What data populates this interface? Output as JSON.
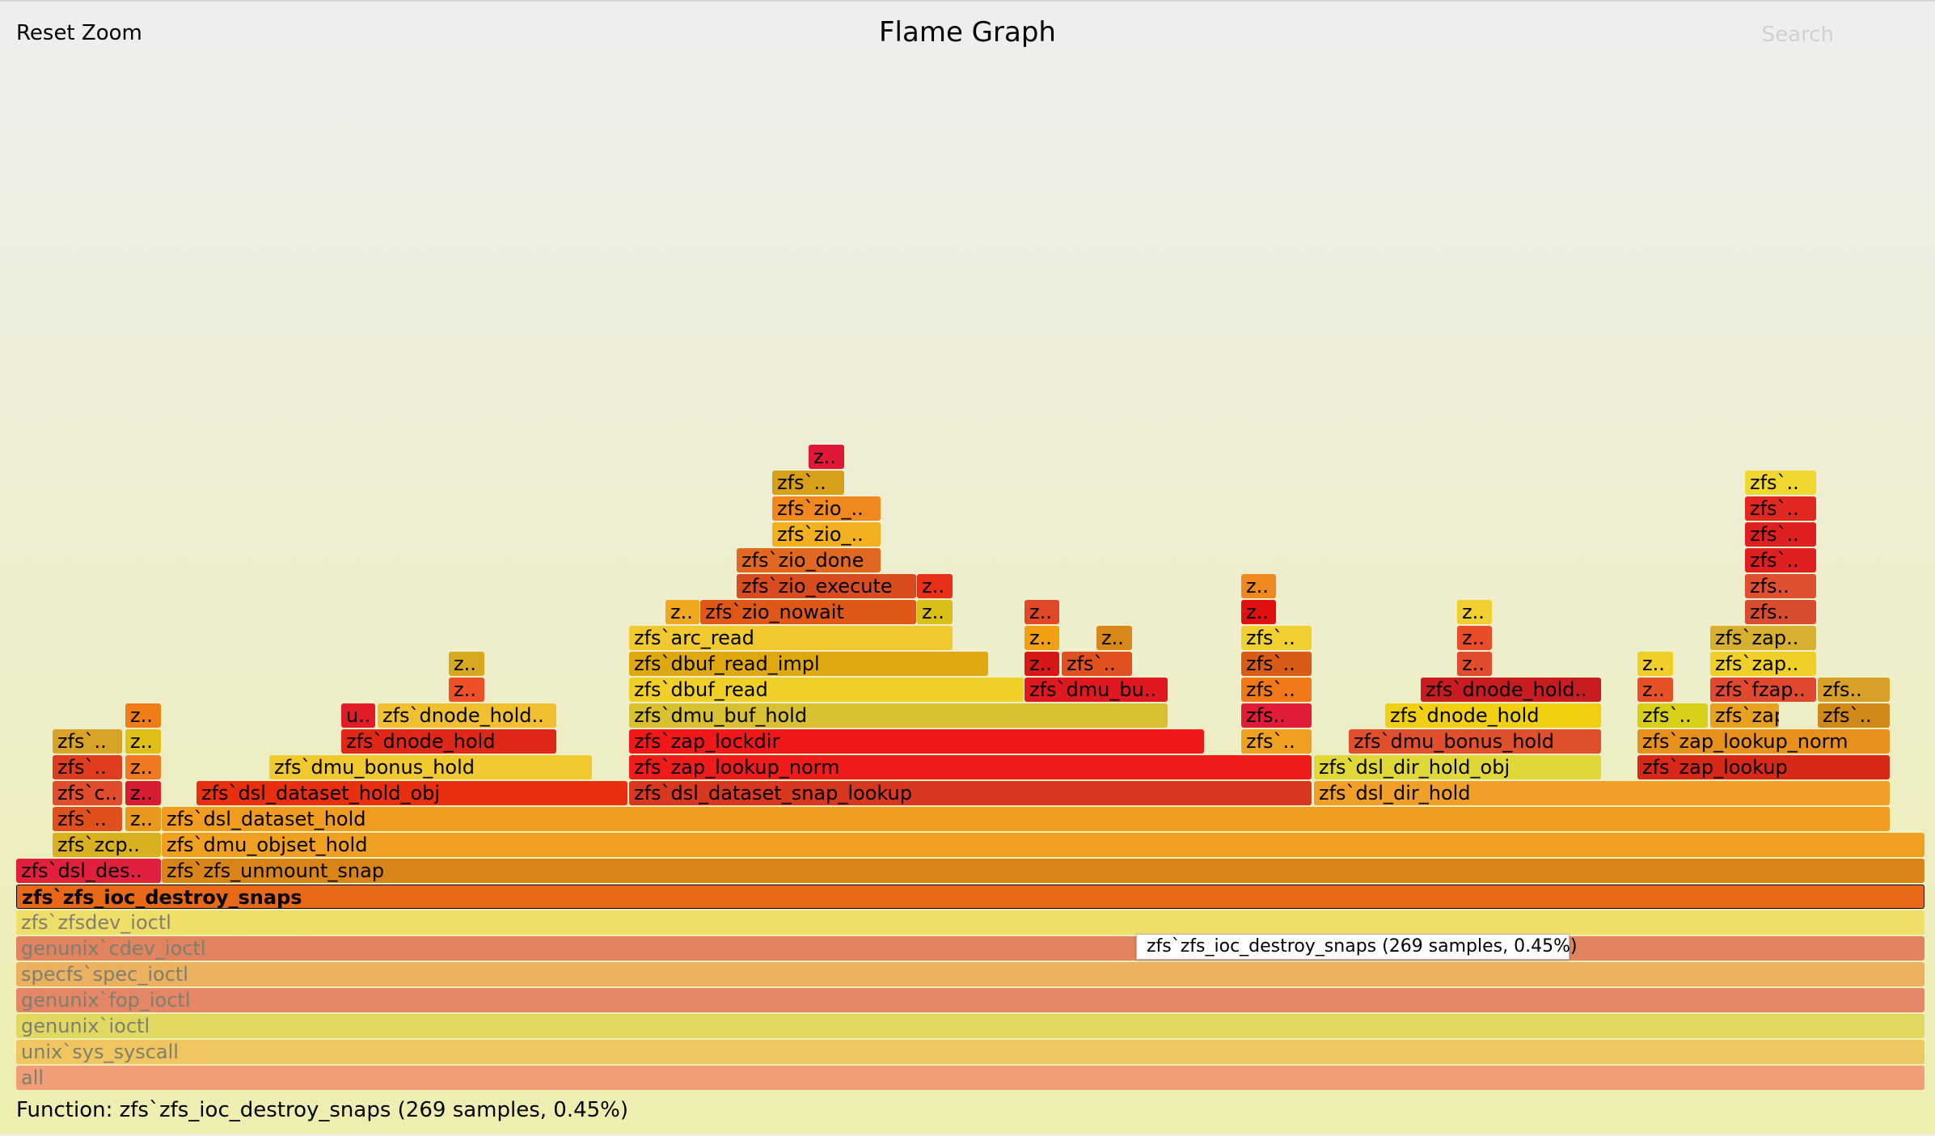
{
  "header": {
    "reset_zoom_label": "Reset Zoom",
    "title": "Flame Graph",
    "search_label": "Search"
  },
  "tooltip": "zfs`zfs_ioc_destroy_snaps (269 samples, 0.45%)",
  "details": "Function: zfs`zfs_ioc_destroy_snaps (269 samples, 0.45%)",
  "colors": {
    "background_top": "#eeeeee",
    "background_bottom": "#eeeeb0"
  },
  "frames": [
    {
      "label": "all",
      "level": 0,
      "color": "#f08060",
      "faded": true
    },
    {
      "label": "unix`sys_syscall",
      "level": 1,
      "color": "#f0b840",
      "faded": true
    },
    {
      "label": "genunix`ioctl",
      "level": 2,
      "color": "#dcd040",
      "faded": true
    },
    {
      "label": "genunix`fop_ioctl",
      "level": 3,
      "color": "#e06048",
      "faded": true
    },
    {
      "label": "specfs`spec_ioctl",
      "level": 4,
      "color": "#ec9a3c",
      "faded": true
    },
    {
      "label": "genunix`cdev_ioctl",
      "level": 5,
      "color": "#dc5a3c",
      "faded": true
    },
    {
      "label": "zfs`zfsdev_ioctl",
      "level": 6,
      "color": "#f0d848",
      "faded": true
    },
    {
      "label": "zfs`zfs_ioc_destroy_snaps",
      "level": 7,
      "color": "#e86818",
      "selected": true
    },
    {
      "label": "zfs`dsl_des..",
      "level": 8,
      "color": "#e0203c"
    },
    {
      "label": "zfs`zfs_unmount_snap",
      "level": 8,
      "color": "#d88418"
    },
    {
      "label": "zfs`zcp..",
      "level": 9,
      "color": "#d8b020"
    },
    {
      "label": "zfs`dmu_objset_hold",
      "level": 9,
      "color": "#f0a020"
    },
    {
      "label": "zfs`..",
      "level": 10,
      "color": "#e0501c"
    },
    {
      "label": "z..",
      "level": 10,
      "color": "#e8981c"
    },
    {
      "label": "zfs`dsl_dataset_hold",
      "level": 10,
      "color": "#f09c20"
    },
    {
      "label": "zfs`c..",
      "level": 11,
      "color": "#e04c2c"
    },
    {
      "label": "z..",
      "level": 11,
      "color": "#d81c30"
    },
    {
      "label": "zfs`dsl_dataset_hold_obj",
      "level": 11,
      "color": "#e83010"
    },
    {
      "label": "zfs`dsl_dataset_snap_lookup",
      "level": 11,
      "color": "#d83820"
    },
    {
      "label": "zfs`dsl_dir_hold",
      "level": 11,
      "color": "#f0a028"
    },
    {
      "label": "zfs`..",
      "level": 12,
      "color": "#e03c20"
    },
    {
      "label": "z..",
      "level": 12,
      "color": "#f07820"
    },
    {
      "label": "zfs`dmu_bonus_hold",
      "level": 12,
      "color": "#f0c830"
    },
    {
      "label": "zfs`zap_lookup_norm",
      "level": 12,
      "color": "#f01c1c"
    },
    {
      "label": "zfs`dsl_dir_hold_obj",
      "level": 12,
      "color": "#e0d838"
    },
    {
      "label": "zfs`zap_lookup",
      "level": 12,
      "color": "#d82818"
    },
    {
      "label": "zfs`..",
      "level": 13,
      "color": "#d8a428"
    },
    {
      "label": "z..",
      "level": 13,
      "color": "#e0c018"
    },
    {
      "label": "zfs`dnode_hold",
      "level": 13,
      "color": "#e02818"
    },
    {
      "label": "zfs`zap_lockdir",
      "level": 13,
      "color": "#f01818"
    },
    {
      "label": "zfs`..",
      "level": 13,
      "color": "#f0a020"
    },
    {
      "label": "zfs`dmu_bonus_hold",
      "level": 13,
      "color": "#e0502c"
    },
    {
      "label": "zfs`zap_lookup_norm",
      "level": 13,
      "color": "#e8901c"
    },
    {
      "label": "z..",
      "level": 14,
      "color": "#f07c18"
    },
    {
      "label": "u..",
      "level": 14,
      "color": "#e01c28"
    },
    {
      "label": "zfs`dnode_hold..",
      "level": 14,
      "color": "#f0c030"
    },
    {
      "label": "zfs`dmu_buf_hold",
      "level": 14,
      "color": "#d8c030"
    },
    {
      "label": "zfs..",
      "level": 14,
      "color": "#e01c38"
    },
    {
      "label": "zfs`dnode_hold",
      "level": 14,
      "color": "#f0d010"
    },
    {
      "label": "zfs`..",
      "level": 14,
      "color": "#d8d018"
    },
    {
      "label": "zfs`zap_..",
      "level": 14,
      "color": "#e8a020"
    },
    {
      "label": "zfs`..",
      "level": 14,
      "color": "#d08818"
    },
    {
      "label": "z..",
      "level": 15,
      "color": "#f05028"
    },
    {
      "label": "zfs`dbuf_read",
      "level": 15,
      "color": "#f0d028"
    },
    {
      "label": "zfs`dmu_bu..",
      "level": 15,
      "color": "#e01820"
    },
    {
      "label": "zfs`..",
      "level": 15,
      "color": "#f07818"
    },
    {
      "label": "zfs`dnode_hold..",
      "level": 15,
      "color": "#c81c20"
    },
    {
      "label": "z..",
      "level": 15,
      "color": "#e85028"
    },
    {
      "label": "zfs`fzap..",
      "level": 15,
      "color": "#e04830"
    },
    {
      "label": "zfs..",
      "level": 15,
      "color": "#d8a028"
    },
    {
      "label": "z..",
      "level": 16,
      "color": "#d8a820"
    },
    {
      "label": "zfs`dbuf_read_impl",
      "level": 16,
      "color": "#e0a810"
    },
    {
      "label": "z..",
      "level": 16,
      "color": "#d81818"
    },
    {
      "label": "zfs`..",
      "level": 16,
      "color": "#e05020"
    },
    {
      "label": "zfs`..",
      "level": 16,
      "color": "#d85c18"
    },
    {
      "label": "z..",
      "level": 16,
      "color": "#e04c2c"
    },
    {
      "label": "z..",
      "level": 16,
      "color": "#f0d028"
    },
    {
      "label": "zfs`zap..",
      "level": 16,
      "color": "#f0d028"
    },
    {
      "label": "zfs`arc_read",
      "level": 17,
      "color": "#f0c830"
    },
    {
      "label": "z..",
      "level": 17,
      "color": "#f0a010"
    },
    {
      "label": "z..",
      "level": 17,
      "color": "#d88818"
    },
    {
      "label": "zfs`..",
      "level": 17,
      "color": "#f0d030"
    },
    {
      "label": "z..",
      "level": 17,
      "color": "#e84c28"
    },
    {
      "label": "zfs`zap..",
      "level": 17,
      "color": "#d8b030"
    },
    {
      "label": "z..",
      "level": 18,
      "color": "#f0a820"
    },
    {
      "label": "zfs`zio_nowait",
      "level": 18,
      "color": "#e05818"
    },
    {
      "label": "z..",
      "level": 18,
      "color": "#d8c018"
    },
    {
      "label": "z..",
      "level": 18,
      "color": "#e04828"
    },
    {
      "label": "z..",
      "level": 18,
      "color": "#e01010"
    },
    {
      "label": "z..",
      "level": 18,
      "color": "#f0d030"
    },
    {
      "label": "zfs..",
      "level": 18,
      "color": "#d84c30"
    },
    {
      "label": "zfs`zio_execute",
      "level": 19,
      "color": "#d84c20"
    },
    {
      "label": "z..",
      "level": 19,
      "color": "#e83018"
    },
    {
      "label": "z..",
      "level": 19,
      "color": "#f08820"
    },
    {
      "label": "zfs..",
      "level": 19,
      "color": "#e05030"
    },
    {
      "label": "zfs`zio_done",
      "level": 20,
      "color": "#e06820"
    },
    {
      "label": "zfs`..",
      "level": 20,
      "color": "#e02020"
    },
    {
      "label": "zfs`zio_..",
      "level": 21,
      "color": "#f0b020"
    },
    {
      "label": "zfs`..",
      "level": 21,
      "color": "#e02020"
    },
    {
      "label": "zfs`zio_..",
      "level": 22,
      "color": "#f08820"
    },
    {
      "label": "zfs`..",
      "level": 22,
      "color": "#e02820"
    },
    {
      "label": "zfs`..",
      "level": 23,
      "color": "#d8a018"
    },
    {
      "label": "zfs`..",
      "level": 23,
      "color": "#f0d830"
    },
    {
      "label": "z..",
      "level": 24,
      "color": "#e01838"
    }
  ]
}
